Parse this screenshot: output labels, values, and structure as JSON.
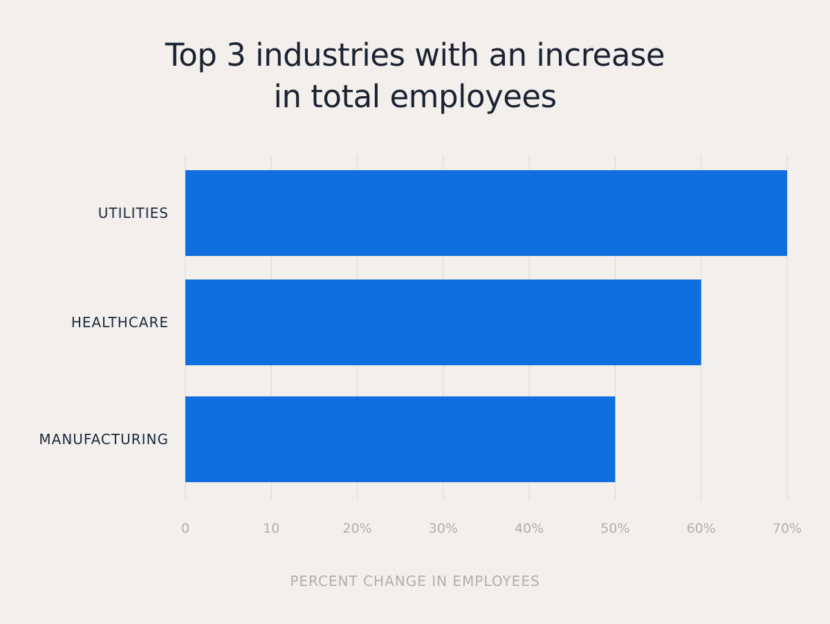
{
  "chart_data": {
    "type": "bar",
    "orientation": "horizontal",
    "title_lines": [
      "Top 3 industries with an increase",
      "in total employees"
    ],
    "categories": [
      "UTILITIES",
      "HEALTHCARE",
      "MANUFACTURING"
    ],
    "values": [
      70,
      60,
      50
    ],
    "xlabel": "PERCENT CHANGE IN EMPLOYEES",
    "ylabel": "",
    "xlim": [
      0,
      70
    ],
    "ticks": [
      0,
      10,
      20,
      30,
      40,
      50,
      60,
      70
    ],
    "tick_labels": [
      "0",
      "10",
      "20%",
      "30%",
      "40%",
      "50%",
      "60%",
      "70%"
    ],
    "grid": true,
    "bar_color": "#0f6fde"
  }
}
